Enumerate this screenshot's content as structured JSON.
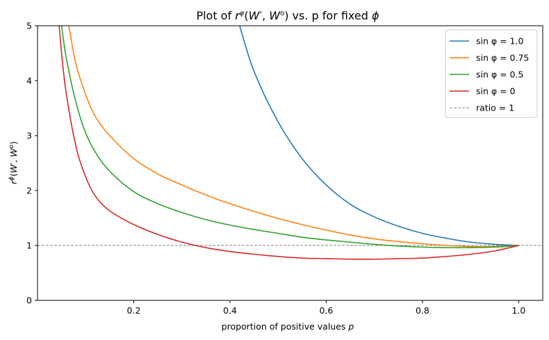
{
  "chart_data": {
    "type": "line",
    "title": "Plot of r^φ(W′, W°) vs. p for fixed φ",
    "xlabel": "proportion of positive values p",
    "ylabel": "r^φ(W′, W°)",
    "xlim": [
      0.0,
      1.05
    ],
    "ylim": [
      0,
      5
    ],
    "xticks": [
      0.2,
      0.4,
      0.6,
      0.8,
      1.0
    ],
    "xtick_labels": [
      "0.2",
      "0.4",
      "0.6",
      "0.8",
      "1.0"
    ],
    "yticks": [
      0,
      1,
      2,
      3,
      4,
      5
    ],
    "ytick_labels": [
      "0",
      "1",
      "2",
      "3",
      "4",
      "5"
    ],
    "legend_position": "top-right",
    "series": [
      {
        "name": "sin φ = 1.0",
        "color": "#1f77b4",
        "x": [
          0.42,
          0.45,
          0.5,
          0.55,
          0.6,
          0.65,
          0.7,
          0.75,
          0.8,
          0.85,
          0.9,
          0.95,
          1.0
        ],
        "y": [
          5.0,
          4.17,
          3.25,
          2.58,
          2.1,
          1.75,
          1.52,
          1.35,
          1.22,
          1.13,
          1.06,
          1.02,
          1.0
        ]
      },
      {
        "name": "sin φ = 0.75",
        "color": "#ff7f0e",
        "x": [
          0.065,
          0.08,
          0.1,
          0.12,
          0.15,
          0.2,
          0.25,
          0.3,
          0.35,
          0.4,
          0.45,
          0.5,
          0.55,
          0.6,
          0.65,
          0.7,
          0.75,
          0.8,
          0.85,
          0.9,
          0.95,
          1.0
        ],
        "y": [
          5.0,
          4.3,
          3.75,
          3.35,
          3.0,
          2.58,
          2.3,
          2.1,
          1.92,
          1.76,
          1.62,
          1.49,
          1.38,
          1.28,
          1.19,
          1.12,
          1.07,
          1.03,
          1.0,
          0.98,
          0.98,
          1.0
        ]
      },
      {
        "name": "sin φ = 0.5",
        "color": "#2ca02c",
        "x": [
          0.05,
          0.06,
          0.08,
          0.1,
          0.12,
          0.15,
          0.2,
          0.25,
          0.3,
          0.35,
          0.4,
          0.45,
          0.5,
          0.55,
          0.6,
          0.65,
          0.7,
          0.75,
          0.8,
          0.85,
          0.9,
          0.95,
          1.0
        ],
        "y": [
          5.0,
          4.4,
          3.6,
          3.05,
          2.7,
          2.35,
          1.98,
          1.76,
          1.6,
          1.47,
          1.37,
          1.29,
          1.22,
          1.15,
          1.1,
          1.06,
          1.02,
          0.99,
          0.97,
          0.96,
          0.96,
          0.97,
          1.0
        ]
      },
      {
        "name": "sin φ = 0",
        "color": "#d62728",
        "x": [
          0.045,
          0.05,
          0.06,
          0.08,
          0.1,
          0.12,
          0.15,
          0.2,
          0.25,
          0.3,
          0.35,
          0.4,
          0.45,
          0.5,
          0.55,
          0.6,
          0.65,
          0.7,
          0.75,
          0.8,
          0.85,
          0.9,
          0.95,
          1.0
        ],
        "y": [
          5.0,
          4.5,
          3.75,
          2.8,
          2.25,
          1.9,
          1.63,
          1.38,
          1.2,
          1.06,
          0.96,
          0.89,
          0.84,
          0.8,
          0.77,
          0.76,
          0.75,
          0.75,
          0.76,
          0.77,
          0.8,
          0.84,
          0.9,
          1.0
        ]
      }
    ],
    "reference_line": {
      "name": "ratio = 1",
      "y": 1,
      "color": "#808080",
      "style": "dashed"
    }
  }
}
